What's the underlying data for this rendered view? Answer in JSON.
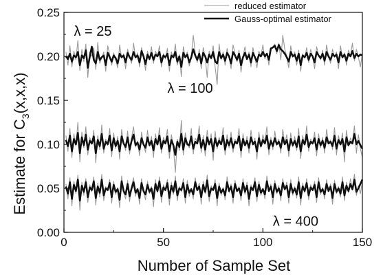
{
  "chart_data": {
    "type": "line",
    "xlabel": "Number of Sample Set",
    "ylabel_main": "Estimate for C",
    "ylabel_sub": "3",
    "ylabel_tail": "(x,x,x)",
    "xlim": [
      0,
      150
    ],
    "ylim": [
      0.0,
      0.25
    ],
    "xticks": [
      0,
      50,
      100,
      150
    ],
    "yticks": [
      0.0,
      0.05,
      0.1,
      0.15,
      0.2,
      0.25
    ],
    "grid": false,
    "legend_position": "top-right",
    "x": [
      1,
      2,
      3,
      4,
      5,
      6,
      7,
      8,
      9,
      10,
      11,
      12,
      13,
      14,
      15,
      16,
      17,
      18,
      19,
      20,
      21,
      22,
      23,
      24,
      25,
      26,
      27,
      28,
      29,
      30,
      31,
      32,
      33,
      34,
      35,
      36,
      37,
      38,
      39,
      40,
      41,
      42,
      43,
      44,
      45,
      46,
      47,
      48,
      49,
      50,
      51,
      52,
      53,
      54,
      55,
      56,
      57,
      58,
      59,
      60,
      61,
      62,
      63,
      64,
      65,
      66,
      67,
      68,
      69,
      70,
      71,
      72,
      73,
      74,
      75,
      76,
      77,
      78,
      79,
      80,
      81,
      82,
      83,
      84,
      85,
      86,
      87,
      88,
      89,
      90,
      91,
      92,
      93,
      94,
      95,
      96,
      97,
      98,
      99,
      100,
      101,
      102,
      103,
      104,
      105,
      106,
      107,
      108,
      109,
      110,
      111,
      112,
      113,
      114,
      115,
      116,
      117,
      118,
      119,
      120,
      121,
      122,
      123,
      124,
      125,
      126,
      127,
      128,
      129,
      130,
      131,
      132,
      133,
      134,
      135,
      136,
      137,
      138,
      139,
      140,
      141,
      142,
      143,
      144,
      145,
      146,
      147,
      148,
      149,
      150
    ],
    "series": [
      {
        "name": "reduced estimator",
        "color": "#999999",
        "width": 1.1,
        "group": "lambda-25",
        "values": [
          0.205,
          0.19,
          0.212,
          0.188,
          0.206,
          0.196,
          0.218,
          0.184,
          0.208,
          0.194,
          0.214,
          0.176,
          0.205,
          0.2,
          0.21,
          0.185,
          0.216,
          0.192,
          0.198,
          0.205,
          0.183,
          0.212,
          0.202,
          0.19,
          0.204,
          0.197,
          0.187,
          0.213,
          0.198,
          0.203,
          0.186,
          0.208,
          0.199,
          0.192,
          0.215,
          0.198,
          0.204,
          0.188,
          0.21,
          0.2,
          0.184,
          0.206,
          0.196,
          0.211,
          0.192,
          0.206,
          0.2,
          0.212,
          0.188,
          0.203,
          0.197,
          0.209,
          0.183,
          0.205,
          0.198,
          0.214,
          0.19,
          0.202,
          0.177,
          0.211,
          0.199,
          0.205,
          0.189,
          0.2,
          0.224,
          0.204,
          0.193,
          0.208,
          0.186,
          0.21,
          0.199,
          0.176,
          0.206,
          0.197,
          0.212,
          0.188,
          0.168,
          0.214,
          0.196,
          0.205,
          0.19,
          0.209,
          0.199,
          0.186,
          0.213,
          0.203,
          0.194,
          0.207,
          0.182,
          0.2,
          0.211,
          0.196,
          0.205,
          0.188,
          0.21,
          0.198,
          0.187,
          0.206,
          0.2,
          0.213,
          0.197,
          0.204,
          0.19,
          0.209,
          0.211,
          0.214,
          0.203,
          0.215,
          0.196,
          0.224,
          0.208,
          0.2,
          0.187,
          0.212,
          0.199,
          0.205,
          0.19,
          0.207,
          0.183,
          0.203,
          0.198,
          0.21,
          0.193,
          0.208,
          0.2,
          0.186,
          0.211,
          0.201,
          0.196,
          0.207,
          0.19,
          0.213,
          0.2,
          0.192,
          0.208,
          0.199,
          0.205,
          0.186,
          0.212,
          0.198,
          0.204,
          0.19,
          0.207,
          0.2,
          0.215,
          0.195,
          0.208,
          0.199,
          0.188,
          0.204
        ]
      },
      {
        "name": "Gauss-optimal estimator",
        "color": "#111111",
        "width": 2.6,
        "group": "lambda-25",
        "values": [
          0.2,
          0.197,
          0.203,
          0.194,
          0.201,
          0.199,
          0.205,
          0.19,
          0.201,
          0.198,
          0.207,
          0.187,
          0.2,
          0.211,
          0.196,
          0.192,
          0.205,
          0.196,
          0.199,
          0.201,
          0.19,
          0.204,
          0.199,
          0.194,
          0.201,
          0.198,
          0.192,
          0.203,
          0.199,
          0.201,
          0.193,
          0.204,
          0.199,
          0.196,
          0.205,
          0.199,
          0.201,
          0.193,
          0.206,
          0.2,
          0.191,
          0.202,
          0.197,
          0.204,
          0.196,
          0.202,
          0.2,
          0.205,
          0.193,
          0.201,
          0.199,
          0.203,
          0.19,
          0.201,
          0.199,
          0.205,
          0.194,
          0.2,
          0.188,
          0.204,
          0.199,
          0.202,
          0.193,
          0.199,
          0.208,
          0.201,
          0.196,
          0.203,
          0.192,
          0.204,
          0.2,
          0.193,
          0.202,
          0.198,
          0.205,
          0.194,
          0.192,
          0.205,
          0.198,
          0.202,
          0.195,
          0.204,
          0.2,
          0.192,
          0.205,
          0.201,
          0.196,
          0.203,
          0.19,
          0.199,
          0.204,
          0.197,
          0.202,
          0.193,
          0.204,
          0.199,
          0.194,
          0.202,
          0.2,
          0.205,
          0.2,
          0.203,
          0.196,
          0.209,
          0.21,
          0.212,
          0.206,
          0.213,
          0.208,
          0.206,
          0.203,
          0.199,
          0.194,
          0.205,
          0.2,
          0.202,
          0.195,
          0.203,
          0.19,
          0.201,
          0.199,
          0.204,
          0.196,
          0.203,
          0.2,
          0.193,
          0.205,
          0.201,
          0.198,
          0.203,
          0.195,
          0.205,
          0.2,
          0.196,
          0.203,
          0.2,
          0.202,
          0.193,
          0.205,
          0.199,
          0.202,
          0.195,
          0.203,
          0.2,
          0.206,
          0.198,
          0.203,
          0.2,
          0.202,
          0.201
        ]
      },
      {
        "name": "reduced estimator",
        "color": "#999999",
        "width": 1.1,
        "group": "lambda-100",
        "values": [
          0.11,
          0.092,
          0.118,
          0.085,
          0.112,
          0.098,
          0.125,
          0.08,
          0.114,
          0.096,
          0.12,
          0.088,
          0.108,
          0.1,
          0.116,
          0.079,
          0.11,
          0.094,
          0.122,
          0.09,
          0.106,
          0.099,
          0.118,
          0.086,
          0.113,
          0.095,
          0.109,
          0.083,
          0.117,
          0.101,
          0.093,
          0.115,
          0.089,
          0.108,
          0.12,
          0.097,
          0.104,
          0.087,
          0.114,
          0.1,
          0.091,
          0.116,
          0.098,
          0.109,
          0.085,
          0.112,
          0.099,
          0.119,
          0.09,
          0.108,
          0.102,
          0.117,
          0.084,
          0.111,
          0.097,
          0.068,
          0.106,
          0.093,
          0.127,
          0.088,
          0.113,
          0.1,
          0.096,
          0.118,
          0.089,
          0.107,
          0.103,
          0.121,
          0.091,
          0.11,
          0.087,
          0.116,
          0.099,
          0.112,
          0.082,
          0.115,
          0.095,
          0.108,
          0.1,
          0.119,
          0.088,
          0.111,
          0.096,
          0.114,
          0.091,
          0.106,
          0.101,
          0.118,
          0.085,
          0.112,
          0.098,
          0.109,
          0.09,
          0.116,
          0.1,
          0.107,
          0.083,
          0.114,
          0.096,
          0.111,
          0.102,
          0.12,
          0.088,
          0.108,
          0.094,
          0.115,
          0.099,
          0.106,
          0.09,
          0.117,
          0.1,
          0.111,
          0.086,
          0.113,
          0.097,
          0.109,
          0.093,
          0.118,
          0.084,
          0.11,
          0.099,
          0.121,
          0.092,
          0.106,
          0.1,
          0.114,
          0.087,
          0.112,
          0.096,
          0.108,
          0.09,
          0.117,
          0.101,
          0.105,
          0.094,
          0.119,
          0.088,
          0.11,
          0.099,
          0.113,
          0.08,
          0.116,
          0.098,
          0.107,
          0.102,
          0.121,
          0.09,
          0.111,
          0.095,
          0.085
        ]
      },
      {
        "name": "Gauss-optimal estimator",
        "color": "#111111",
        "width": 2.6,
        "group": "lambda-100",
        "values": [
          0.105,
          0.098,
          0.11,
          0.092,
          0.106,
          0.1,
          0.113,
          0.09,
          0.108,
          0.099,
          0.111,
          0.094,
          0.104,
          0.101,
          0.109,
          0.09,
          0.105,
          0.098,
          0.112,
          0.095,
          0.103,
          0.1,
          0.11,
          0.093,
          0.107,
          0.098,
          0.104,
          0.092,
          0.109,
          0.101,
          0.097,
          0.108,
          0.094,
          0.104,
          0.111,
          0.099,
          0.102,
          0.094,
          0.107,
          0.1,
          0.096,
          0.108,
          0.099,
          0.104,
          0.093,
          0.106,
          0.1,
          0.11,
          0.095,
          0.104,
          0.101,
          0.109,
          0.092,
          0.105,
          0.099,
          0.088,
          0.103,
          0.097,
          0.112,
          0.094,
          0.107,
          0.1,
          0.099,
          0.109,
          0.095,
          0.103,
          0.101,
          0.111,
          0.096,
          0.105,
          0.094,
          0.108,
          0.1,
          0.106,
          0.092,
          0.107,
          0.098,
          0.104,
          0.1,
          0.11,
          0.094,
          0.105,
          0.099,
          0.107,
          0.096,
          0.103,
          0.101,
          0.109,
          0.093,
          0.106,
          0.099,
          0.104,
          0.096,
          0.108,
          0.1,
          0.103,
          0.092,
          0.107,
          0.098,
          0.105,
          0.101,
          0.11,
          0.095,
          0.104,
          0.098,
          0.107,
          0.1,
          0.103,
          0.096,
          0.108,
          0.1,
          0.105,
          0.093,
          0.106,
          0.099,
          0.104,
          0.097,
          0.109,
          0.092,
          0.105,
          0.1,
          0.111,
          0.097,
          0.103,
          0.101,
          0.107,
          0.094,
          0.106,
          0.099,
          0.104,
          0.096,
          0.108,
          0.101,
          0.103,
          0.098,
          0.11,
          0.095,
          0.105,
          0.1,
          0.106,
          0.092,
          0.108,
          0.099,
          0.103,
          0.101,
          0.112,
          0.1,
          0.104,
          0.099,
          0.095
        ]
      },
      {
        "name": "reduced estimator",
        "color": "#999999",
        "width": 1.1,
        "group": "lambda-400",
        "values": [
          0.055,
          0.038,
          0.062,
          0.03,
          0.058,
          0.044,
          0.065,
          0.025,
          0.057,
          0.042,
          0.061,
          0.034,
          0.054,
          0.046,
          0.063,
          0.031,
          0.056,
          0.04,
          0.066,
          0.036,
          0.052,
          0.047,
          0.06,
          0.033,
          0.058,
          0.043,
          0.051,
          0.028,
          0.064,
          0.045,
          0.038,
          0.059,
          0.035,
          0.053,
          0.062,
          0.041,
          0.05,
          0.032,
          0.061,
          0.046,
          0.037,
          0.058,
          0.044,
          0.052,
          0.029,
          0.06,
          0.045,
          0.063,
          0.034,
          0.054,
          0.048,
          0.06,
          0.031,
          0.057,
          0.043,
          0.064,
          0.036,
          0.052,
          0.046,
          0.061,
          0.033,
          0.059,
          0.041,
          0.05,
          0.038,
          0.062,
          0.047,
          0.056,
          0.032,
          0.058,
          0.044,
          0.065,
          0.035,
          0.053,
          0.048,
          0.06,
          0.03,
          0.056,
          0.042,
          0.051,
          0.037,
          0.063,
          0.045,
          0.055,
          0.033,
          0.059,
          0.046,
          0.052,
          0.036,
          0.061,
          0.043,
          0.057,
          0.03,
          0.054,
          0.047,
          0.062,
          0.035,
          0.058,
          0.042,
          0.05,
          0.038,
          0.064,
          0.046,
          0.055,
          0.032,
          0.059,
          0.044,
          0.053,
          0.036,
          0.061,
          0.048,
          0.057,
          0.033,
          0.06,
          0.042,
          0.052,
          0.039,
          0.063,
          0.031,
          0.056,
          0.045,
          0.061,
          0.037,
          0.054,
          0.047,
          0.058,
          0.034,
          0.062,
          0.043,
          0.051,
          0.038,
          0.06,
          0.046,
          0.055,
          0.032,
          0.059,
          0.044,
          0.052,
          0.04,
          0.063,
          0.036,
          0.057,
          0.045,
          0.061,
          0.048,
          0.066,
          0.042,
          0.053,
          0.044,
          0.058
        ]
      },
      {
        "name": "Gauss-optimal estimator",
        "color": "#111111",
        "width": 2.6,
        "group": "lambda-400",
        "values": [
          0.052,
          0.044,
          0.057,
          0.038,
          0.054,
          0.047,
          0.06,
          0.036,
          0.053,
          0.046,
          0.057,
          0.04,
          0.051,
          0.048,
          0.058,
          0.039,
          0.052,
          0.045,
          0.06,
          0.042,
          0.05,
          0.048,
          0.056,
          0.04,
          0.054,
          0.046,
          0.049,
          0.037,
          0.058,
          0.047,
          0.043,
          0.055,
          0.041,
          0.05,
          0.057,
          0.045,
          0.049,
          0.039,
          0.056,
          0.047,
          0.043,
          0.054,
          0.046,
          0.05,
          0.038,
          0.055,
          0.047,
          0.058,
          0.041,
          0.051,
          0.048,
          0.056,
          0.039,
          0.053,
          0.046,
          0.058,
          0.042,
          0.05,
          0.048,
          0.056,
          0.04,
          0.054,
          0.045,
          0.049,
          0.043,
          0.057,
          0.048,
          0.052,
          0.04,
          0.054,
          0.046,
          0.059,
          0.041,
          0.05,
          0.048,
          0.055,
          0.039,
          0.052,
          0.045,
          0.049,
          0.042,
          0.057,
          0.047,
          0.052,
          0.04,
          0.055,
          0.047,
          0.05,
          0.042,
          0.056,
          0.046,
          0.053,
          0.038,
          0.051,
          0.048,
          0.057,
          0.041,
          0.054,
          0.045,
          0.049,
          0.043,
          0.058,
          0.047,
          0.052,
          0.04,
          0.055,
          0.046,
          0.05,
          0.042,
          0.056,
          0.049,
          0.053,
          0.04,
          0.055,
          0.045,
          0.05,
          0.043,
          0.057,
          0.039,
          0.052,
          0.047,
          0.056,
          0.042,
          0.051,
          0.048,
          0.054,
          0.04,
          0.057,
          0.046,
          0.049,
          0.043,
          0.055,
          0.047,
          0.052,
          0.039,
          0.055,
          0.046,
          0.05,
          0.044,
          0.057,
          0.042,
          0.053,
          0.047,
          0.055,
          0.049,
          0.06,
          0.046,
          0.05,
          0.055,
          0.06
        ]
      }
    ],
    "annotations": [
      {
        "text": "λ = 25",
        "x": 5,
        "y": 0.229
      },
      {
        "text": "λ = 100",
        "x": 52,
        "y": 0.164
      },
      {
        "text": "λ = 400",
        "x": 105,
        "y": 0.013
      }
    ],
    "legend": [
      {
        "label": "reduced estimator",
        "color": "#999999",
        "width": 1.1
      },
      {
        "label": "Gauss-optimal estimator",
        "color": "#111111",
        "width": 2.6
      }
    ]
  }
}
